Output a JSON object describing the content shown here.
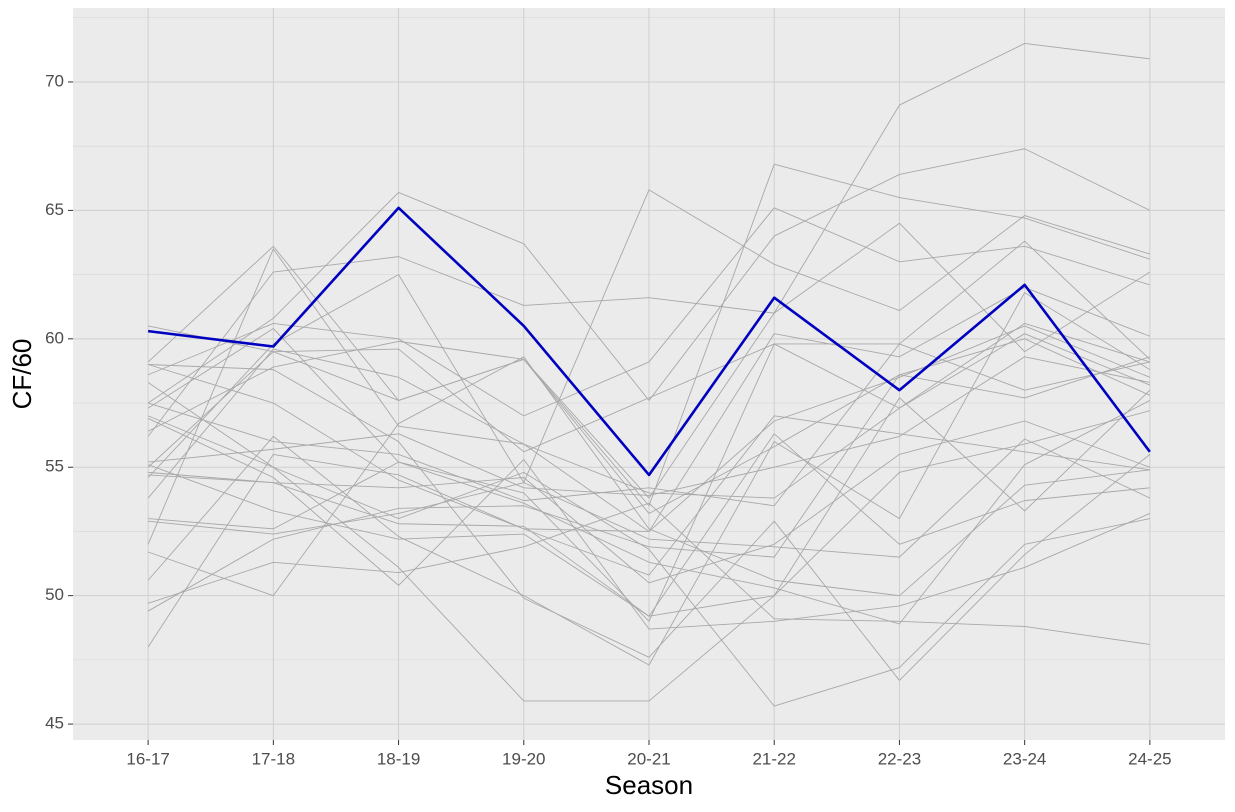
{
  "chart_data": {
    "type": "line",
    "x_label": "Season",
    "y_label": "CF/60",
    "categories": [
      "16-17",
      "17-18",
      "18-19",
      "19-20",
      "20-21",
      "21-22",
      "22-23",
      "23-24",
      "24-25"
    ],
    "ylim": [
      44.38,
      72.88
    ],
    "yticks": [
      45,
      50,
      55,
      60,
      65,
      70
    ],
    "yminor": [
      47.5,
      52.5,
      57.5,
      62.5,
      67.5,
      72.5
    ],
    "grid": true,
    "series": [
      {
        "color": "#a8a8a8",
        "values": [
          55.0,
          59.5,
          57.6,
          59.2,
          53.8,
          61.0,
          69.1,
          71.5,
          70.9
        ]
      },
      {
        "color": "#a8a8a8",
        "values": [
          57.5,
          60.8,
          65.7,
          63.7,
          57.6,
          64.0,
          66.4,
          67.4,
          65.0
        ]
      },
      {
        "color": "#a8a8a8",
        "values": [
          54.6,
          59.8,
          62.5,
          54.4,
          65.8,
          62.9,
          61.1,
          64.8,
          63.3
        ]
      },
      {
        "color": "#a8a8a8",
        "values": [
          59.1,
          63.6,
          57.6,
          59.2,
          53.5,
          66.8,
          65.5,
          64.7,
          63.1
        ]
      },
      {
        "color": "#a8a8a8",
        "values": [
          56.2,
          62.6,
          63.2,
          61.3,
          61.6,
          61.0,
          64.5,
          59.5,
          62.6
        ]
      },
      {
        "color": "#a8a8a8",
        "values": [
          58.6,
          60.6,
          60.0,
          57.0,
          59.1,
          65.1,
          63.0,
          63.6,
          62.1
        ]
      },
      {
        "color": "#a8a8a8",
        "values": [
          52.0,
          63.5,
          56.6,
          55.9,
          52.5,
          60.2,
          59.3,
          62.0,
          60.1
        ]
      },
      {
        "color": "#a8a8a8",
        "values": [
          60.5,
          59.5,
          59.6,
          55.6,
          57.7,
          59.8,
          59.8,
          63.8,
          59.2
        ]
      },
      {
        "color": "#a8a8a8",
        "values": [
          57.3,
          60.4,
          55.2,
          54.0,
          49.0,
          59.8,
          57.3,
          60.6,
          59.1
        ]
      },
      {
        "color": "#a8a8a8",
        "values": [
          50.6,
          56.2,
          52.3,
          50.0,
          47.3,
          56.0,
          53.0,
          61.8,
          58.8
        ]
      },
      {
        "color": "#a8a8a8",
        "values": [
          48.0,
          55.5,
          54.7,
          52.6,
          52.5,
          56.8,
          58.5,
          60.5,
          58.5
        ]
      },
      {
        "color": "#a8a8a8",
        "values": [
          53.8,
          59.6,
          58.5,
          55.9,
          54.0,
          53.8,
          57.3,
          60.2,
          58.2
        ]
      },
      {
        "color": "#a8a8a8",
        "values": [
          49.4,
          52.2,
          53.4,
          53.5,
          51.9,
          51.5,
          58.6,
          60.0,
          57.8
        ]
      },
      {
        "color": "#a8a8a8",
        "values": [
          55.2,
          55.7,
          56.3,
          54.2,
          53.9,
          55.0,
          56.2,
          59.3,
          58.3
        ]
      },
      {
        "color": "#a8a8a8",
        "values": [
          57.5,
          56.0,
          55.5,
          53.7,
          54.2,
          53.5,
          59.8,
          58.0,
          59.1
        ]
      },
      {
        "color": "#a8a8a8",
        "values": [
          59.0,
          57.5,
          54.5,
          52.6,
          50.8,
          57.0,
          56.3,
          55.6,
          54.9
        ]
      },
      {
        "color": "#a8a8a8",
        "values": [
          54.8,
          54.4,
          54.2,
          54.6,
          50.5,
          52.0,
          55.5,
          56.8,
          55.0
        ]
      },
      {
        "color": "#a8a8a8",
        "values": [
          52.9,
          52.4,
          53.2,
          54.4,
          52.2,
          51.9,
          51.5,
          56.1,
          53.8
        ]
      },
      {
        "color": "#a8a8a8",
        "values": [
          51.7,
          50.0,
          56.7,
          59.3,
          52.6,
          50.6,
          50.0,
          54.3,
          54.9
        ]
      },
      {
        "color": "#a8a8a8",
        "values": [
          55.1,
          53.3,
          52.2,
          52.4,
          49.2,
          56.3,
          52.0,
          53.7,
          54.2
        ]
      },
      {
        "color": "#a8a8a8",
        "values": [
          58.3,
          55.0,
          51.1,
          45.9,
          45.9,
          50.0,
          57.7,
          53.3,
          58.0
        ]
      },
      {
        "color": "#a8a8a8",
        "values": [
          49.7,
          51.3,
          50.9,
          51.9,
          53.6,
          49.1,
          49.0,
          48.8,
          48.1
        ]
      },
      {
        "color": "#a8a8a8",
        "values": [
          56.9,
          54.6,
          50.4,
          55.3,
          48.7,
          49.0,
          49.6,
          51.1,
          53.2
        ]
      },
      {
        "color": "#a8a8a8",
        "values": [
          57.0,
          55.0,
          53.0,
          54.8,
          51.8,
          45.7,
          47.2,
          52.0,
          53.0
        ]
      },
      {
        "color": "#a8a8a8",
        "values": [
          59.0,
          58.8,
          56.0,
          49.9,
          47.6,
          52.9,
          46.7,
          51.6,
          55.5
        ]
      },
      {
        "color": "#a8a8a8",
        "values": [
          54.7,
          54.4,
          52.8,
          52.7,
          49.2,
          50.0,
          54.8,
          55.9,
          57.2
        ]
      },
      {
        "color": "#a8a8a8",
        "values": [
          53.0,
          52.6,
          55.2,
          53.6,
          51.3,
          50.3,
          48.9,
          55.1,
          57.6
        ]
      },
      {
        "color": "#a8a8a8",
        "values": [
          56.4,
          58.9,
          59.9,
          59.2,
          53.2,
          55.8,
          58.6,
          57.7,
          59.3
        ]
      },
      {
        "color": "#0000c0",
        "values": [
          60.3,
          59.7,
          65.1,
          60.5,
          54.7,
          61.6,
          58.0,
          62.1,
          55.6
        ]
      }
    ]
  }
}
